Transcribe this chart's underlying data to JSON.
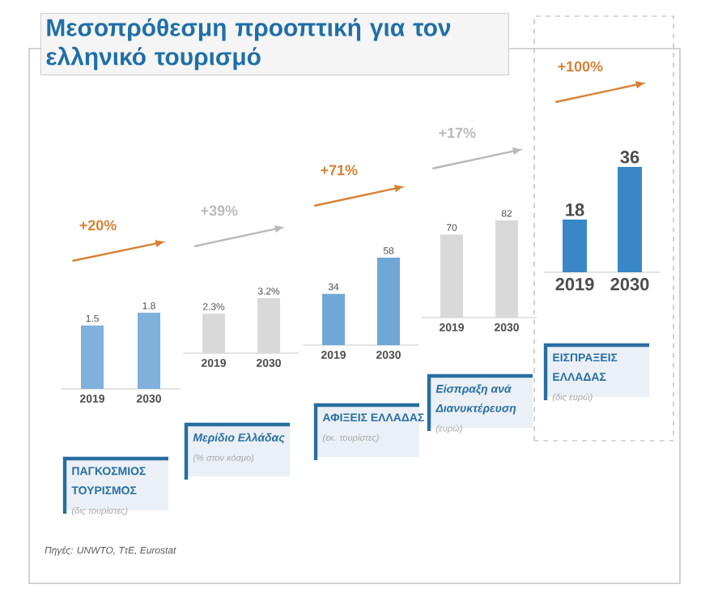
{
  "chart_data": [
    {
      "type": "bar",
      "title": "Μεσοπρόθεσμη προοπτική για τον ελληνικό τουρισμό",
      "categories": [
        "2019",
        "2030"
      ],
      "values": [
        1.5,
        1.8
      ],
      "color": "#7fb1dc",
      "data_labels": true,
      "xlabel": "ΠΑΓΚΟΣΜΙΟΣ ΤΟΥΡΙΣΜΟΣ",
      "annotations": [
        "+20%",
        "(δις τουρίστες)",
        "Πηγές: UNWTO, ΤτΕ, Eurostat"
      ]
    },
    {
      "type": "bar",
      "categories": [
        "2019",
        "2030"
      ],
      "values": [
        2.3,
        3.2
      ],
      "value_labels": [
        "2.3%",
        "3.2%"
      ],
      "color": "#d9d9d9",
      "xlabel": "Μερίδιο Ελλάδας",
      "annotations": [
        "+39%",
        "(% στον κόσμο)"
      ]
    },
    {
      "type": "bar",
      "categories": [
        "2019",
        "2030"
      ],
      "values": [
        34,
        58
      ],
      "color": "#6fa8d6",
      "data_labels": true,
      "xlabel": "ΑΦΙΞΕΙΣ ΕΛΛΑΔΑΣ",
      "annotations": [
        "+71%",
        "(εκ. τουρίστες)"
      ]
    },
    {
      "type": "bar",
      "categories": [
        "2019",
        "2030"
      ],
      "values": [
        70,
        82
      ],
      "color": "#d9d9d9",
      "data_labels": true,
      "xlabel": "Είσπραξη ανά Διανυκτέρευση",
      "annotations": [
        "+17%",
        "(ευρώ)"
      ]
    },
    {
      "type": "bar",
      "categories": [
        "2019",
        "2030"
      ],
      "values": [
        18,
        36
      ],
      "color": "#3a87c8",
      "data_labels": true,
      "xlabel": "ΕΙΣΠΡΑΞΕΙΣ ΕΛΛΑΔΑΣ",
      "annotations": [
        "+100%",
        "(δις ευρώ)"
      ]
    }
  ]
}
